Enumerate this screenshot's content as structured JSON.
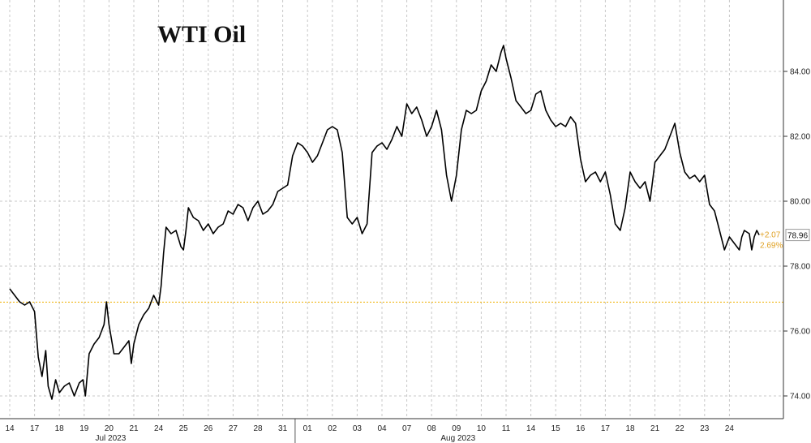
{
  "chart_data": {
    "type": "line",
    "title": "WTI Oil",
    "xlabel": "",
    "ylabel": "",
    "categories": [
      "14",
      "17",
      "18",
      "19",
      "20",
      "21",
      "24",
      "25",
      "26",
      "27",
      "28",
      "31",
      "01",
      "02",
      "03",
      "04",
      "07",
      "08",
      "09",
      "10",
      "11",
      "14",
      "15",
      "16",
      "17",
      "18",
      "21",
      "22",
      "23",
      "24"
    ],
    "month_labels": [
      {
        "label": "Jul 2023",
        "under": "20"
      },
      {
        "label": "Aug 2023",
        "under": "09"
      }
    ],
    "y_ticks": [
      "74.00",
      "76.00",
      "78.00",
      "80.00",
      "82.00",
      "84.00"
    ],
    "ylim": [
      73.3,
      86.2
    ],
    "grid": true,
    "reference_line": {
      "value": 76.89,
      "color": "#f0b000"
    },
    "last_value": "78.96",
    "change_abs": "+2.07",
    "change_pct": "2.69%",
    "line_color": "#000000",
    "series": [
      {
        "values": [
          [
            0,
            77.3
          ],
          [
            0.2,
            77.1
          ],
          [
            0.4,
            76.9
          ],
          [
            0.6,
            76.8
          ],
          [
            0.8,
            76.9
          ],
          [
            1.0,
            76.6
          ],
          [
            1.15,
            75.2
          ],
          [
            1.3,
            74.6
          ],
          [
            1.45,
            75.4
          ],
          [
            1.55,
            74.3
          ],
          [
            1.7,
            73.9
          ],
          [
            1.85,
            74.5
          ],
          [
            2.0,
            74.1
          ],
          [
            2.2,
            74.3
          ],
          [
            2.4,
            74.4
          ],
          [
            2.6,
            74.0
          ],
          [
            2.8,
            74.4
          ],
          [
            2.95,
            74.5
          ],
          [
            3.05,
            74.0
          ],
          [
            3.2,
            75.3
          ],
          [
            3.4,
            75.6
          ],
          [
            3.6,
            75.8
          ],
          [
            3.8,
            76.2
          ],
          [
            3.9,
            76.9
          ],
          [
            4.0,
            76.2
          ],
          [
            4.2,
            75.3
          ],
          [
            4.4,
            75.3
          ],
          [
            4.6,
            75.5
          ],
          [
            4.8,
            75.7
          ],
          [
            4.9,
            75.0
          ],
          [
            5.0,
            75.6
          ],
          [
            5.2,
            76.2
          ],
          [
            5.4,
            76.5
          ],
          [
            5.6,
            76.7
          ],
          [
            5.8,
            77.1
          ],
          [
            6.0,
            76.8
          ],
          [
            6.1,
            77.4
          ],
          [
            6.2,
            78.4
          ],
          [
            6.3,
            79.2
          ],
          [
            6.5,
            79.0
          ],
          [
            6.7,
            79.1
          ],
          [
            6.9,
            78.6
          ],
          [
            7.0,
            78.5
          ],
          [
            7.1,
            79.1
          ],
          [
            7.2,
            79.8
          ],
          [
            7.4,
            79.5
          ],
          [
            7.6,
            79.4
          ],
          [
            7.8,
            79.1
          ],
          [
            8.0,
            79.3
          ],
          [
            8.2,
            79.0
          ],
          [
            8.4,
            79.2
          ],
          [
            8.6,
            79.3
          ],
          [
            8.8,
            79.7
          ],
          [
            9.0,
            79.6
          ],
          [
            9.2,
            79.9
          ],
          [
            9.4,
            79.8
          ],
          [
            9.6,
            79.4
          ],
          [
            9.8,
            79.8
          ],
          [
            10.0,
            80.0
          ],
          [
            10.2,
            79.6
          ],
          [
            10.4,
            79.7
          ],
          [
            10.6,
            79.9
          ],
          [
            10.8,
            80.3
          ],
          [
            11.0,
            80.4
          ],
          [
            11.2,
            80.5
          ],
          [
            11.4,
            81.4
          ],
          [
            11.6,
            81.8
          ],
          [
            11.8,
            81.7
          ],
          [
            12.0,
            81.5
          ],
          [
            12.2,
            81.2
          ],
          [
            12.4,
            81.4
          ],
          [
            12.6,
            81.8
          ],
          [
            12.8,
            82.2
          ],
          [
            13.0,
            82.3
          ],
          [
            13.2,
            82.2
          ],
          [
            13.4,
            81.5
          ],
          [
            13.6,
            79.5
          ],
          [
            13.8,
            79.3
          ],
          [
            14.0,
            79.5
          ],
          [
            14.2,
            79.0
          ],
          [
            14.4,
            79.3
          ],
          [
            14.6,
            81.5
          ],
          [
            14.8,
            81.7
          ],
          [
            15.0,
            81.8
          ],
          [
            15.2,
            81.6
          ],
          [
            15.4,
            81.9
          ],
          [
            15.6,
            82.3
          ],
          [
            15.8,
            82.0
          ],
          [
            16.0,
            83.0
          ],
          [
            16.2,
            82.7
          ],
          [
            16.4,
            82.9
          ],
          [
            16.6,
            82.5
          ],
          [
            16.8,
            82.0
          ],
          [
            17.0,
            82.3
          ],
          [
            17.2,
            82.8
          ],
          [
            17.4,
            82.2
          ],
          [
            17.6,
            80.8
          ],
          [
            17.8,
            80.0
          ],
          [
            18.0,
            80.8
          ],
          [
            18.2,
            82.2
          ],
          [
            18.4,
            82.8
          ],
          [
            18.6,
            82.7
          ],
          [
            18.8,
            82.8
          ],
          [
            19.0,
            83.4
          ],
          [
            19.2,
            83.7
          ],
          [
            19.4,
            84.2
          ],
          [
            19.6,
            84.0
          ],
          [
            19.8,
            84.6
          ],
          [
            19.9,
            84.8
          ],
          [
            20.0,
            84.4
          ],
          [
            20.2,
            83.8
          ],
          [
            20.4,
            83.1
          ],
          [
            20.6,
            82.9
          ],
          [
            20.8,
            82.7
          ],
          [
            21.0,
            82.8
          ],
          [
            21.2,
            83.3
          ],
          [
            21.4,
            83.4
          ],
          [
            21.6,
            82.8
          ],
          [
            21.8,
            82.5
          ],
          [
            22.0,
            82.3
          ],
          [
            22.2,
            82.4
          ],
          [
            22.4,
            82.3
          ],
          [
            22.6,
            82.6
          ],
          [
            22.8,
            82.4
          ],
          [
            23.0,
            81.3
          ],
          [
            23.2,
            80.6
          ],
          [
            23.4,
            80.8
          ],
          [
            23.6,
            80.9
          ],
          [
            23.8,
            80.6
          ],
          [
            24.0,
            80.9
          ],
          [
            24.2,
            80.2
          ],
          [
            24.4,
            79.3
          ],
          [
            24.6,
            79.1
          ],
          [
            24.8,
            79.8
          ],
          [
            25.0,
            80.9
          ],
          [
            25.2,
            80.6
          ],
          [
            25.4,
            80.4
          ],
          [
            25.6,
            80.6
          ],
          [
            25.8,
            80.0
          ],
          [
            26.0,
            81.2
          ],
          [
            26.2,
            81.4
          ],
          [
            26.4,
            81.6
          ],
          [
            26.6,
            82.0
          ],
          [
            26.8,
            82.4
          ],
          [
            27.0,
            81.5
          ],
          [
            27.2,
            80.9
          ],
          [
            27.4,
            80.7
          ],
          [
            27.6,
            80.8
          ],
          [
            27.8,
            80.6
          ],
          [
            28.0,
            80.8
          ],
          [
            28.2,
            79.9
          ],
          [
            28.4,
            79.7
          ],
          [
            28.6,
            79.1
          ],
          [
            28.8,
            78.5
          ],
          [
            29.0,
            78.9
          ],
          [
            29.2,
            78.7
          ],
          [
            29.4,
            78.5
          ],
          [
            29.5,
            78.9
          ],
          [
            29.6,
            79.1
          ],
          [
            29.8,
            79.0
          ],
          [
            29.9,
            78.5
          ],
          [
            30.0,
            78.9
          ],
          [
            30.1,
            79.1
          ],
          [
            30.2,
            78.96
          ]
        ]
      }
    ]
  }
}
